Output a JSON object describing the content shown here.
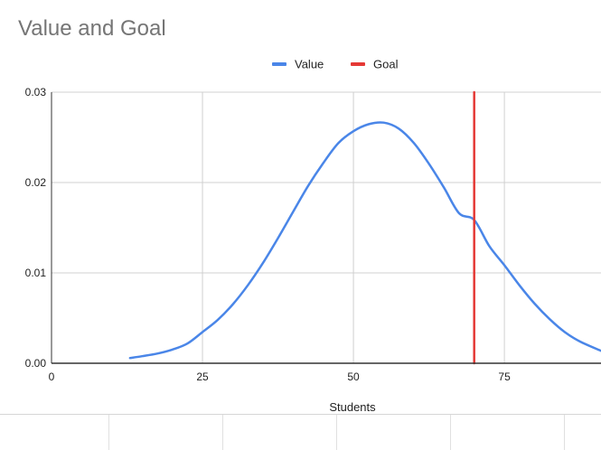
{
  "chart_data": {
    "type": "line",
    "title": "Value and Goal",
    "xlabel": "Students",
    "ylabel": "",
    "xlim": [
      0,
      91
    ],
    "ylim": [
      0,
      0.03
    ],
    "x_ticks": [
      0,
      25,
      50,
      75
    ],
    "y_ticks": [
      0.0,
      0.01,
      0.02,
      0.03
    ],
    "x_tick_labels": [
      "0",
      "25",
      "50",
      "75"
    ],
    "y_tick_labels": [
      "0.00",
      "0.01",
      "0.02",
      "0.03"
    ],
    "grid": true,
    "legend_position": "top",
    "series": [
      {
        "name": "Value",
        "color": "#4a86e8",
        "x": [
          13,
          15,
          17.5,
          20,
          22.5,
          25,
          27.5,
          30,
          32.5,
          35,
          37.5,
          40,
          42.5,
          45,
          47.5,
          50,
          52.5,
          55,
          57.5,
          60,
          62.5,
          65,
          67.5,
          70,
          72.5,
          75,
          77.5,
          80,
          82.5,
          85,
          87.5,
          91
        ],
        "y": [
          0.00058,
          0.00078,
          0.00107,
          0.00151,
          0.00218,
          0.00345,
          0.00478,
          0.0065,
          0.00862,
          0.01108,
          0.01384,
          0.01675,
          0.01963,
          0.02215,
          0.02436,
          0.02568,
          0.02645,
          0.02663,
          0.02597,
          0.02438,
          0.02208,
          0.01943,
          0.0166,
          0.01585,
          0.01297,
          0.01085,
          0.00862,
          0.0066,
          0.00488,
          0.00345,
          0.00241,
          0.00138
        ]
      },
      {
        "name": "Goal",
        "color": "#e53935",
        "x": [
          70,
          70
        ],
        "y": [
          0,
          0.03
        ]
      }
    ]
  }
}
